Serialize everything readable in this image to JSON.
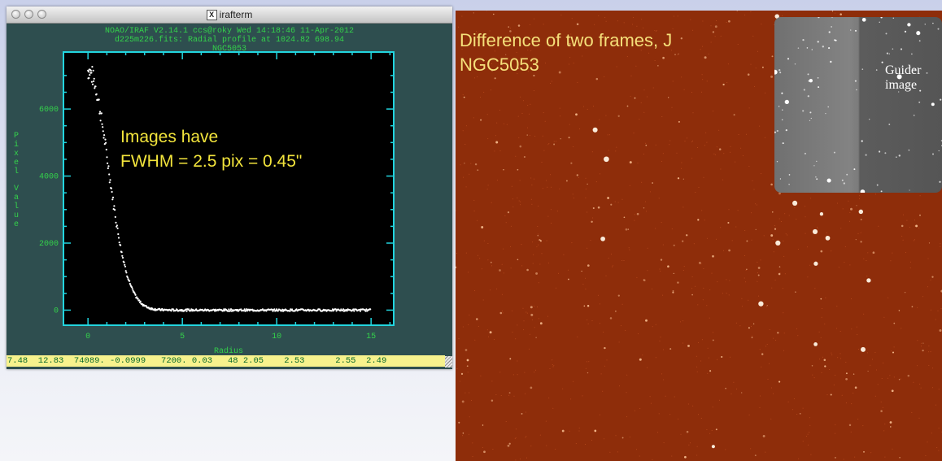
{
  "window": {
    "title": "irafterm",
    "title_icon_glyph": "X",
    "header_lines": [
      "NOAO/IRAF V2.14.1 ccs@roky Wed 14:18:46 11-Apr-2012",
      "d225m226.fits: Radial profile at 1024.82 698.94",
      "NGC5053"
    ],
    "annotation_lines": [
      "Images have",
      "FWHM = 2.5 pix = 0.45\""
    ],
    "status_line": "7.48  12.83  74089. -0.0999   7200. 0.03   48 2.05    2.53      2.55  2.49"
  },
  "sky_panel": {
    "title_lines": [
      "Difference of two frames, J",
      "NGC5053"
    ],
    "guider_label_lines": [
      "Guider",
      "image"
    ]
  },
  "colors": {
    "terminal_bg": "#2e4e4f",
    "plot_text": "#34d24b",
    "plot_frame": "#22d5df",
    "annotation": "#f3e53c",
    "status_bg": "#f7f28d",
    "sky_bg": "#8e2d0a",
    "sky_title": "#f5e07a"
  },
  "chart_data": {
    "type": "scatter",
    "title": "NGC5053",
    "xlabel": "Radius",
    "ylabel": "Pixel Value",
    "xlim": [
      -1.3,
      16.2
    ],
    "ylim": [
      -450,
      7700
    ],
    "xticks": [
      0,
      5,
      10,
      15
    ],
    "yticks": [
      0,
      2000,
      4000,
      6000
    ],
    "grid": false,
    "profile": {
      "peak": 7150,
      "fwhm": 2.5,
      "max_radius": 15
    }
  }
}
